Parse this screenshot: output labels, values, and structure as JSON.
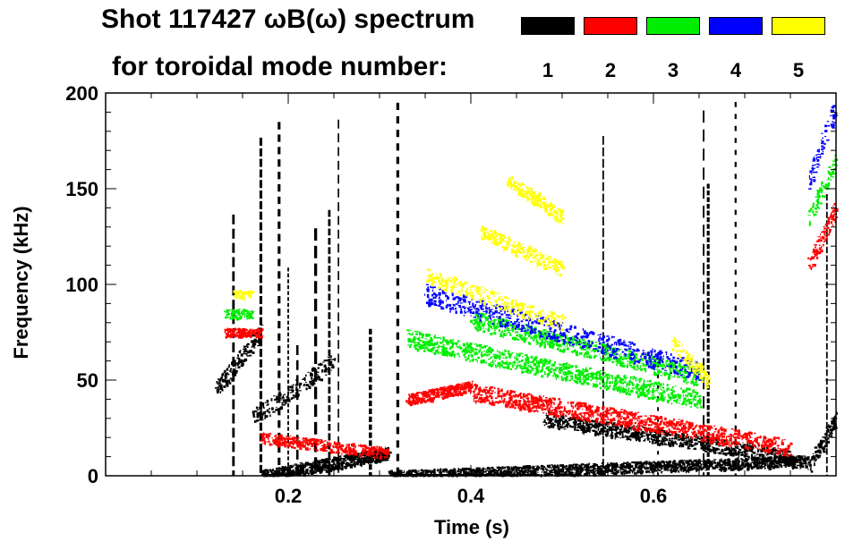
{
  "chart_data": {
    "type": "heatmap",
    "title_line1": "Shot 117427 ωB(ω) spectrum",
    "title_line2": "for toroidal mode number:",
    "xlabel": "Time (s)",
    "ylabel": "Frequency (kHz)",
    "xlim": [
      0.0,
      0.8
    ],
    "ylim": [
      0,
      200
    ],
    "x_ticks": [
      0.2,
      0.4,
      0.6
    ],
    "x_tick_labels": [
      "0.2",
      "0.4",
      "0.6"
    ],
    "y_ticks": [
      0,
      50,
      100,
      150,
      200
    ],
    "y_tick_labels": [
      "0",
      "50",
      "100",
      "150",
      "200"
    ],
    "legend": [
      {
        "label": "1",
        "color": "#000000"
      },
      {
        "label": "2",
        "color": "#ff0000"
      },
      {
        "label": "3",
        "color": "#00ee00"
      },
      {
        "label": "4",
        "color": "#0000ff"
      },
      {
        "label": "5",
        "color": "#ffff00"
      }
    ],
    "mode_bands": [
      {
        "mode": "1",
        "segments": [
          {
            "t": [
              0.12,
              0.17
            ],
            "f": [
              45,
              75
            ],
            "density": 0.5
          },
          {
            "t": [
              0.16,
              0.25
            ],
            "f": [
              30,
              60
            ],
            "density": 0.35
          },
          {
            "t": [
              0.17,
              0.31
            ],
            "f": [
              0,
              12
            ],
            "density": 0.9
          },
          {
            "t": [
              0.31,
              0.77
            ],
            "f": [
              0,
              8
            ],
            "density": 0.7
          },
          {
            "t": [
              0.48,
              0.75
            ],
            "f": [
              30,
              10
            ],
            "density": 0.6
          },
          {
            "t": [
              0.77,
              0.8
            ],
            "f": [
              5,
              30
            ],
            "density": 0.6
          }
        ]
      },
      {
        "mode": "2",
        "segments": [
          {
            "t": [
              0.13,
              0.17
            ],
            "f": [
              75,
              75
            ],
            "density": 0.6
          },
          {
            "t": [
              0.17,
              0.31
            ],
            "f": [
              20,
              12
            ],
            "density": 0.5
          },
          {
            "t": [
              0.33,
              0.4
            ],
            "f": [
              40,
              47
            ],
            "density": 0.85
          },
          {
            "t": [
              0.4,
              0.75
            ],
            "f": [
              44,
              15
            ],
            "density": 0.55
          },
          {
            "t": [
              0.77,
              0.8
            ],
            "f": [
              110,
              140
            ],
            "density": 0.5
          }
        ]
      },
      {
        "mode": "3",
        "segments": [
          {
            "t": [
              0.13,
              0.16
            ],
            "f": [
              85,
              85
            ],
            "density": 0.4
          },
          {
            "t": [
              0.33,
              0.65
            ],
            "f": [
              72,
              40
            ],
            "density": 0.55
          },
          {
            "t": [
              0.4,
              0.65
            ],
            "f": [
              82,
              52
            ],
            "density": 0.5
          },
          {
            "t": [
              0.77,
              0.8
            ],
            "f": [
              135,
              165
            ],
            "density": 0.4
          }
        ]
      },
      {
        "mode": "4",
        "segments": [
          {
            "t": [
              0.35,
              0.65
            ],
            "f": [
              95,
              55
            ],
            "density": 0.35
          },
          {
            "t": [
              0.77,
              0.8
            ],
            "f": [
              155,
              195
            ],
            "density": 0.3
          }
        ]
      },
      {
        "mode": "5",
        "segments": [
          {
            "t": [
              0.14,
              0.16
            ],
            "f": [
              95,
              95
            ],
            "density": 0.3
          },
          {
            "t": [
              0.35,
              0.5
            ],
            "f": [
              105,
              80
            ],
            "density": 0.3
          },
          {
            "t": [
              0.41,
              0.5
            ],
            "f": [
              128,
              108
            ],
            "density": 0.5
          },
          {
            "t": [
              0.44,
              0.5
            ],
            "f": [
              155,
              135
            ],
            "density": 0.55
          },
          {
            "t": [
              0.62,
              0.66
            ],
            "f": [
              70,
              50
            ],
            "density": 0.4
          }
        ]
      }
    ],
    "vertical_streaks": [
      0.14,
      0.17,
      0.19,
      0.2,
      0.21,
      0.23,
      0.245,
      0.255,
      0.29,
      0.32,
      0.545,
      0.605,
      0.655,
      0.66,
      0.69,
      0.79
    ]
  }
}
